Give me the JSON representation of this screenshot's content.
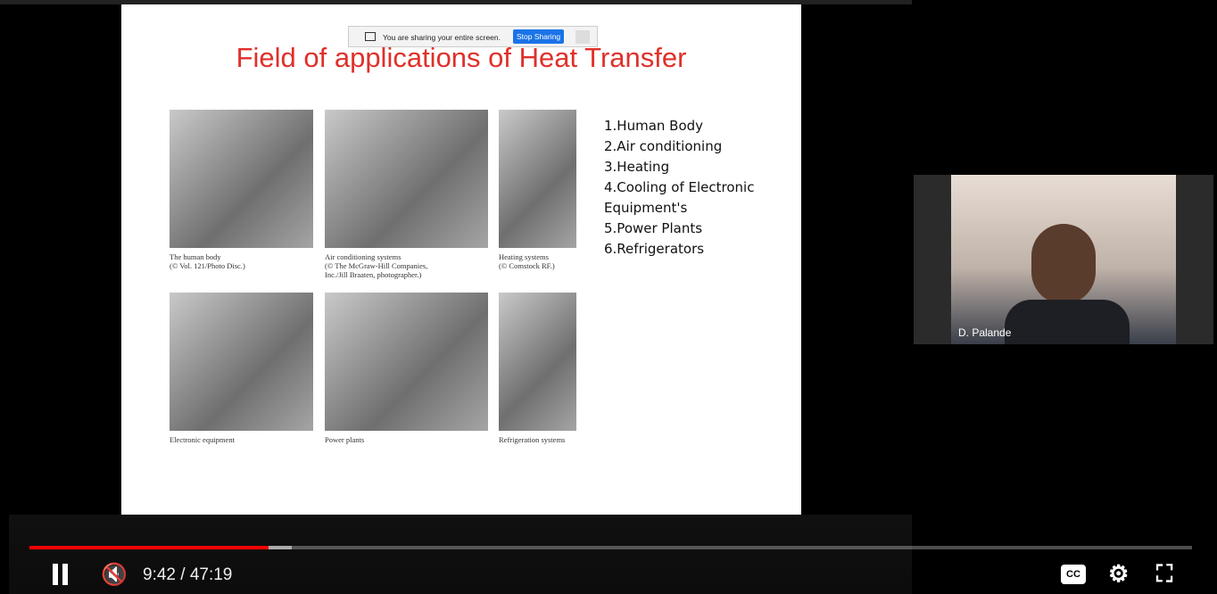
{
  "share_bar": {
    "message": "You are sharing your entire screen.",
    "button": "Stop Sharing"
  },
  "slide": {
    "title": "Field of applications of Heat Transfer",
    "figures": [
      {
        "caption": [
          "The human body",
          "(© Vol. 121/Photo Disc.)"
        ]
      },
      {
        "caption": [
          "Air conditioning systems",
          "(© The McGraw-Hill Companies,",
          "Inc./Jill Braaten, photographer.)"
        ]
      },
      {
        "caption": [
          "Heating systems",
          "(© Comstock RF.)"
        ]
      },
      {
        "caption": [
          "Electronic equipment"
        ]
      },
      {
        "caption": [
          "Power plants"
        ]
      },
      {
        "caption": [
          "Refrigeration systems"
        ]
      }
    ],
    "list": [
      "1.Human Body",
      "2.Air conditioning",
      "3.Heating",
      "4.Cooling of Electronic Equipment's",
      "5.Power Plants",
      "6.Refrigerators"
    ]
  },
  "webcam": {
    "name": "D. Palande"
  },
  "player": {
    "time": "9:42 / 47:19"
  }
}
